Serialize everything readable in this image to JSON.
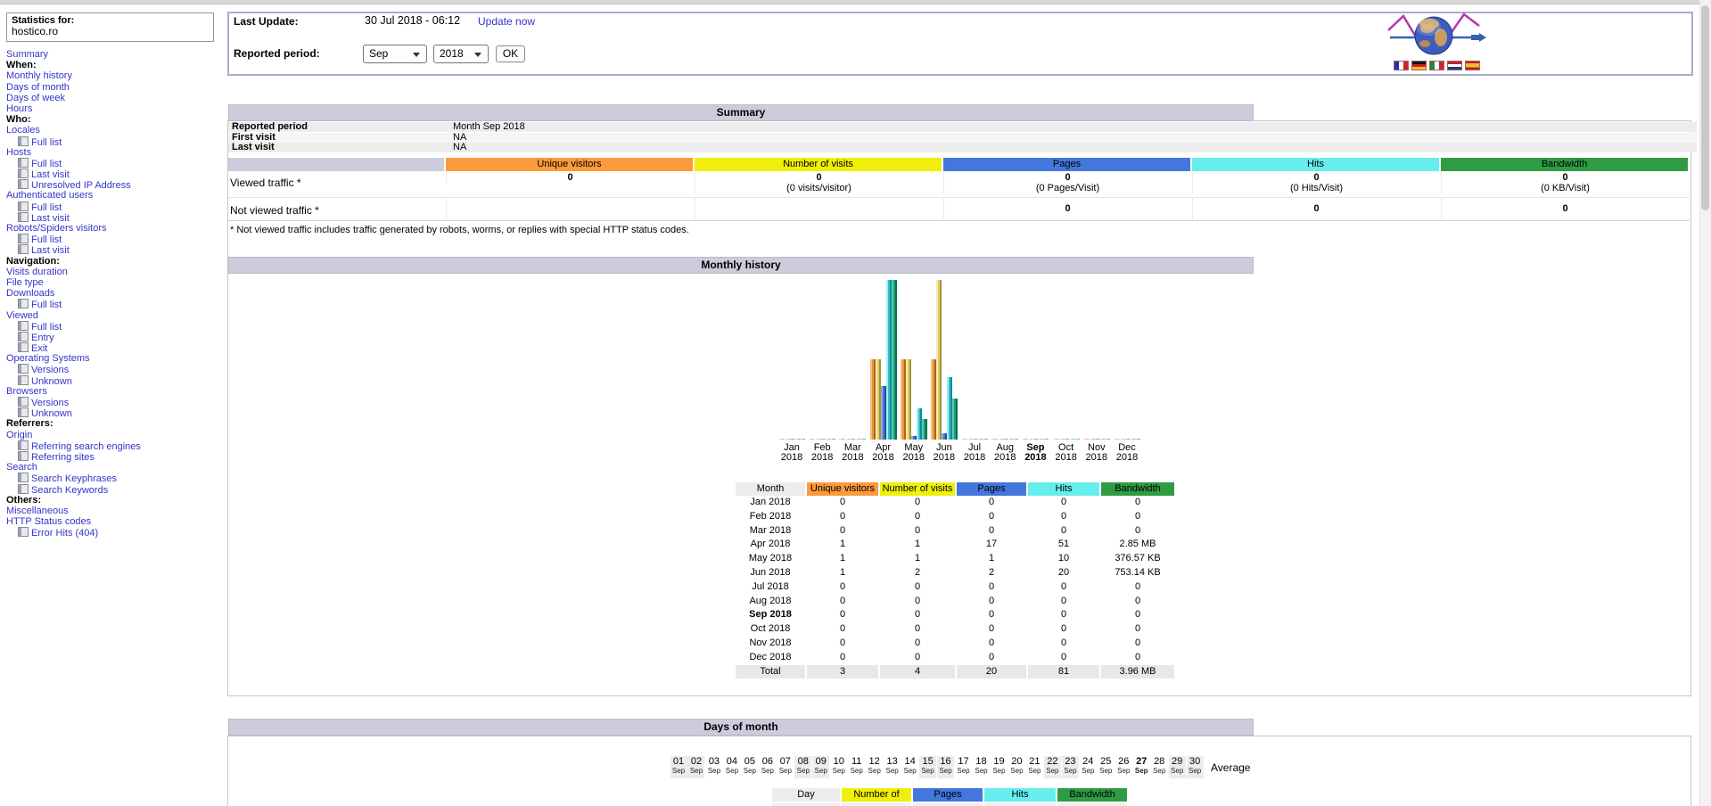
{
  "colors": {
    "unique": "#FC9A3C",
    "visits": "#EFEF0B",
    "pages": "#4477DD",
    "hits": "#66EEEE",
    "bandwidth": "#2F9C44",
    "title_bar": "#CCCCDD",
    "cell_gray": "#ECECEC",
    "total_row": "#E8E8E8",
    "link": "#3434C8"
  },
  "sidebar": {
    "stats_for_label": "Statistics for:",
    "site": "hostico.ro",
    "items": [
      {
        "type": "link",
        "label": "Summary"
      },
      {
        "type": "header",
        "label": "When:"
      },
      {
        "type": "link",
        "label": "Monthly history"
      },
      {
        "type": "link",
        "label": "Days of month"
      },
      {
        "type": "link",
        "label": "Days of week"
      },
      {
        "type": "link",
        "label": "Hours"
      },
      {
        "type": "header",
        "label": "Who:"
      },
      {
        "type": "link",
        "label": "Locales"
      },
      {
        "type": "sub",
        "label": "Full list"
      },
      {
        "type": "link",
        "label": "Hosts"
      },
      {
        "type": "sub",
        "label": "Full list"
      },
      {
        "type": "sub",
        "label": "Last visit"
      },
      {
        "type": "sub",
        "label": "Unresolved IP Address"
      },
      {
        "type": "link",
        "label": "Authenticated users"
      },
      {
        "type": "sub",
        "label": "Full list"
      },
      {
        "type": "sub",
        "label": "Last visit"
      },
      {
        "type": "link",
        "label": "Robots/Spiders visitors"
      },
      {
        "type": "sub",
        "label": "Full list"
      },
      {
        "type": "sub",
        "label": "Last visit"
      },
      {
        "type": "header",
        "label": "Navigation:"
      },
      {
        "type": "link",
        "label": "Visits duration"
      },
      {
        "type": "link",
        "label": "File type"
      },
      {
        "type": "link",
        "label": "Downloads"
      },
      {
        "type": "sub",
        "label": "Full list"
      },
      {
        "type": "link",
        "label": "Viewed"
      },
      {
        "type": "sub",
        "label": "Full list"
      },
      {
        "type": "sub",
        "label": "Entry"
      },
      {
        "type": "sub",
        "label": "Exit"
      },
      {
        "type": "link",
        "label": "Operating Systems"
      },
      {
        "type": "sub",
        "label": "Versions"
      },
      {
        "type": "sub",
        "label": "Unknown"
      },
      {
        "type": "link",
        "label": "Browsers"
      },
      {
        "type": "sub",
        "label": "Versions"
      },
      {
        "type": "sub",
        "label": "Unknown"
      },
      {
        "type": "header",
        "label": "Referrers:"
      },
      {
        "type": "link",
        "label": "Origin"
      },
      {
        "type": "sub",
        "label": "Referring search engines"
      },
      {
        "type": "sub",
        "label": "Referring sites"
      },
      {
        "type": "link",
        "label": "Search"
      },
      {
        "type": "sub",
        "label": "Search Keyphrases"
      },
      {
        "type": "sub",
        "label": "Search Keywords"
      },
      {
        "type": "header",
        "label": "Others:"
      },
      {
        "type": "link",
        "label": "Miscellaneous"
      },
      {
        "type": "link",
        "label": "HTTP Status codes"
      },
      {
        "type": "sub",
        "label": "Error Hits (404)"
      }
    ]
  },
  "topbar": {
    "last_update_label": "Last Update:",
    "last_update_value": "30 Jul 2018 - 06:12",
    "update_link": "Update now",
    "reported_label": "Reported period:",
    "month_value": "Sep",
    "year_value": "2018",
    "ok_label": "OK",
    "flags": [
      "france",
      "germany",
      "italy",
      "netherlands",
      "spain"
    ]
  },
  "summary": {
    "title": "Summary",
    "info_rows": [
      {
        "label": "Reported period",
        "value": "Month Sep 2018"
      },
      {
        "label": "First visit",
        "value": "NA"
      },
      {
        "label": "Last visit",
        "value": "NA"
      }
    ],
    "metrics": [
      "Unique visitors",
      "Number of visits",
      "Pages",
      "Hits",
      "Bandwidth"
    ],
    "viewed_label": "Viewed traffic *",
    "not_viewed_label": "Not viewed traffic *",
    "viewed": [
      {
        "value": "0",
        "sub": ""
      },
      {
        "value": "0",
        "sub": "(0 visits/visitor)"
      },
      {
        "value": "0",
        "sub": "(0 Pages/Visit)"
      },
      {
        "value": "0",
        "sub": "(0 Hits/Visit)"
      },
      {
        "value": "0",
        "sub": "(0 KB/Visit)"
      }
    ],
    "not_viewed": [
      "",
      "",
      "0",
      "0",
      "0"
    ],
    "footnote": "* Not viewed traffic includes traffic generated by robots, worms, or replies with special HTTP status codes."
  },
  "chart_data": {
    "type": "bar",
    "title": "Monthly history",
    "categories": [
      "Jan 2018",
      "Feb 2018",
      "Mar 2018",
      "Apr 2018",
      "May 2018",
      "Jun 2018",
      "Jul 2018",
      "Aug 2018",
      "Sep 2018",
      "Oct 2018",
      "Nov 2018",
      "Dec 2018"
    ],
    "highlight_index": 8,
    "series": [
      {
        "name": "Unique visitors",
        "values": [
          0,
          0,
          0,
          1,
          1,
          1,
          0,
          0,
          0,
          0,
          0,
          0
        ]
      },
      {
        "name": "Number of visits",
        "values": [
          0,
          0,
          0,
          1,
          1,
          2,
          0,
          0,
          0,
          0,
          0,
          0
        ]
      },
      {
        "name": "Pages",
        "values": [
          0,
          0,
          0,
          17,
          1,
          2,
          0,
          0,
          0,
          0,
          0,
          0
        ]
      },
      {
        "name": "Hits",
        "values": [
          0,
          0,
          0,
          51,
          10,
          20,
          0,
          0,
          0,
          0,
          0,
          0
        ]
      },
      {
        "name": "Bandwidth (KB)",
        "values": [
          0,
          0,
          0,
          2918.4,
          376.57,
          753.14,
          0,
          0,
          0,
          0,
          0,
          0
        ]
      }
    ],
    "scale_groups": [
      [
        0,
        1
      ],
      [
        2,
        3
      ],
      [
        4
      ]
    ],
    "legend_position": "none",
    "grid": false
  },
  "monthly_table": {
    "headers": [
      "Month",
      "Unique visitors",
      "Number of visits",
      "Pages",
      "Hits",
      "Bandwidth"
    ],
    "rows": [
      [
        "Jan 2018",
        "0",
        "0",
        "0",
        "0",
        "0"
      ],
      [
        "Feb 2018",
        "0",
        "0",
        "0",
        "0",
        "0"
      ],
      [
        "Mar 2018",
        "0",
        "0",
        "0",
        "0",
        "0"
      ],
      [
        "Apr 2018",
        "1",
        "1",
        "17",
        "51",
        "2.85 MB"
      ],
      [
        "May 2018",
        "1",
        "1",
        "1",
        "10",
        "376.57 KB"
      ],
      [
        "Jun 2018",
        "1",
        "2",
        "2",
        "20",
        "753.14 KB"
      ],
      [
        "Jul 2018",
        "0",
        "0",
        "0",
        "0",
        "0"
      ],
      [
        "Aug 2018",
        "0",
        "0",
        "0",
        "0",
        "0"
      ],
      [
        "Sep 2018",
        "0",
        "0",
        "0",
        "0",
        "0"
      ],
      [
        "Oct 2018",
        "0",
        "0",
        "0",
        "0",
        "0"
      ],
      [
        "Nov 2018",
        "0",
        "0",
        "0",
        "0",
        "0"
      ],
      [
        "Dec 2018",
        "0",
        "0",
        "0",
        "0",
        "0"
      ]
    ],
    "bold_row_index": 8,
    "total": [
      "Total",
      "3",
      "4",
      "20",
      "81",
      "3.96 MB"
    ]
  },
  "days": {
    "title": "Days of month",
    "month_abbr": "Sep",
    "day_numbers": [
      "01",
      "02",
      "03",
      "04",
      "05",
      "06",
      "07",
      "08",
      "09",
      "10",
      "11",
      "12",
      "13",
      "14",
      "15",
      "16",
      "17",
      "18",
      "19",
      "20",
      "21",
      "22",
      "23",
      "24",
      "25",
      "26",
      "27",
      "28",
      "29",
      "30"
    ],
    "weekend_days": [
      1,
      2,
      8,
      9,
      15,
      16,
      22,
      23,
      29,
      30
    ],
    "bold_day": 27,
    "average_label": "Average",
    "table_headers": [
      "Day",
      "Number of visits",
      "Pages",
      "Hits",
      "Bandwidth"
    ]
  }
}
